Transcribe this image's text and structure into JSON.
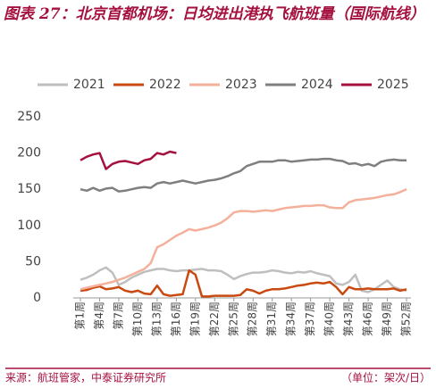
{
  "chart_data": {
    "type": "line",
    "title": "图表 27：北京首都机场：日均进出港执飞航班量（国际航线）",
    "source": "来源：航班管家，中泰证券研究所",
    "unit": "（单位：架次/日）",
    "categories": [
      "第1周",
      null,
      null,
      "第4周",
      null,
      null,
      "第7周",
      null,
      null,
      "第10周",
      null,
      null,
      "第13周",
      null,
      null,
      "第16周",
      null,
      null,
      "第19周",
      null,
      null,
      "第22周",
      null,
      null,
      "第25周",
      null,
      null,
      "第28周",
      null,
      null,
      "第31周",
      null,
      null,
      "第34周",
      null,
      null,
      "第37周",
      null,
      null,
      "第40周",
      null,
      null,
      "第43周",
      null,
      null,
      "第46周",
      null,
      null,
      "第49周",
      null,
      null,
      "第52周"
    ],
    "series": [
      {
        "name": "2021",
        "color": "#bfbfbf",
        "values": [
          25,
          28,
          32,
          38,
          42,
          35,
          18,
          22,
          28,
          32,
          36,
          38,
          40,
          40,
          38,
          37,
          38,
          38,
          39,
          40,
          38,
          38,
          37,
          32,
          26,
          30,
          33,
          35,
          35,
          36,
          38,
          37,
          35,
          34,
          36,
          35,
          37,
          34,
          32,
          30,
          20,
          18,
          22,
          32,
          10,
          8,
          12,
          18,
          24,
          15,
          12,
          10
        ]
      },
      {
        "name": "2022",
        "color": "#c94a10",
        "values": [
          10,
          11,
          14,
          16,
          12,
          13,
          15,
          10,
          8,
          10,
          6,
          5,
          17,
          5,
          3,
          4,
          5,
          38,
          32,
          2,
          2,
          3,
          3,
          3,
          3,
          4,
          12,
          10,
          6,
          10,
          12,
          12,
          13,
          15,
          17,
          18,
          20,
          21,
          20,
          22,
          15,
          5,
          15,
          12,
          12,
          13,
          12,
          12,
          12,
          13,
          10,
          12
        ]
      },
      {
        "name": "2023",
        "color": "#f4b09a",
        "values": [
          12,
          14,
          16,
          18,
          20,
          22,
          25,
          28,
          32,
          36,
          40,
          48,
          70,
          74,
          80,
          86,
          90,
          95,
          93,
          95,
          97,
          100,
          104,
          110,
          118,
          120,
          120,
          119,
          120,
          121,
          120,
          122,
          124,
          125,
          126,
          127,
          127,
          128,
          128,
          125,
          124,
          124,
          132,
          135,
          136,
          137,
          138,
          140,
          142,
          143,
          146,
          150
        ]
      },
      {
        "name": "2024",
        "color": "#7f7f7f",
        "values": [
          150,
          148,
          152,
          148,
          151,
          152,
          147,
          148,
          150,
          152,
          153,
          152,
          158,
          160,
          158,
          160,
          162,
          160,
          158,
          160,
          162,
          163,
          165,
          168,
          172,
          175,
          182,
          185,
          188,
          188,
          188,
          190,
          190,
          188,
          189,
          190,
          191,
          191,
          192,
          192,
          190,
          189,
          185,
          186,
          183,
          185,
          182,
          188,
          190,
          191,
          190,
          190
        ]
      },
      {
        "name": "2025",
        "color": "#a5113f",
        "values": [
          190,
          195,
          198,
          200,
          178,
          185,
          188,
          189,
          187,
          185,
          190,
          192,
          200,
          198,
          202,
          200,
          null,
          null,
          null,
          null,
          null,
          null,
          null,
          null,
          null,
          null,
          null,
          null,
          null,
          null,
          null,
          null,
          null,
          null,
          null,
          null,
          null,
          null,
          null,
          null,
          null,
          null,
          null,
          null,
          null,
          null,
          null,
          null,
          null,
          null,
          null,
          null
        ]
      }
    ],
    "ylim": [
      0,
      250
    ],
    "yticks": [
      0,
      50,
      100,
      150,
      200,
      250
    ],
    "grid": false
  }
}
